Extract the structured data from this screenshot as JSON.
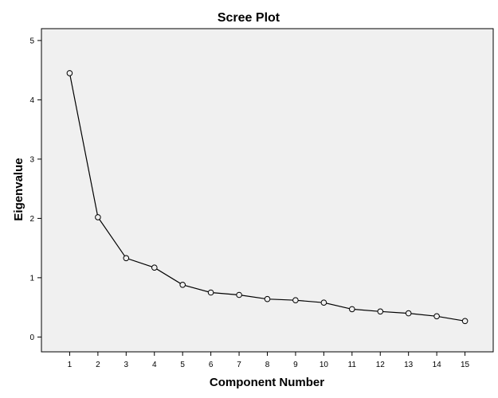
{
  "chart_data": {
    "type": "line",
    "title": "Scree Plot",
    "xlabel": "Component Number",
    "ylabel": "Eigenvalue",
    "x": [
      1,
      2,
      3,
      4,
      5,
      6,
      7,
      8,
      9,
      10,
      11,
      12,
      13,
      14,
      15
    ],
    "series": [
      {
        "values": [
          4.45,
          2.02,
          1.33,
          1.17,
          0.88,
          0.75,
          0.71,
          0.64,
          0.62,
          0.58,
          0.47,
          0.43,
          0.4,
          0.35,
          0.27
        ]
      }
    ],
    "xlim": [
      0,
      16
    ],
    "ylim": [
      -0.25,
      5.2
    ],
    "xticks": [
      1,
      2,
      3,
      4,
      5,
      6,
      7,
      8,
      9,
      10,
      11,
      12,
      13,
      14,
      15
    ],
    "yticks": [
      0,
      1,
      2,
      3,
      4,
      5
    ],
    "grid": false,
    "legend": "none",
    "marker": "open-circle",
    "colors": {
      "plot_background": "#f0f0f0",
      "line": "#000000",
      "frame": "#000000"
    }
  }
}
